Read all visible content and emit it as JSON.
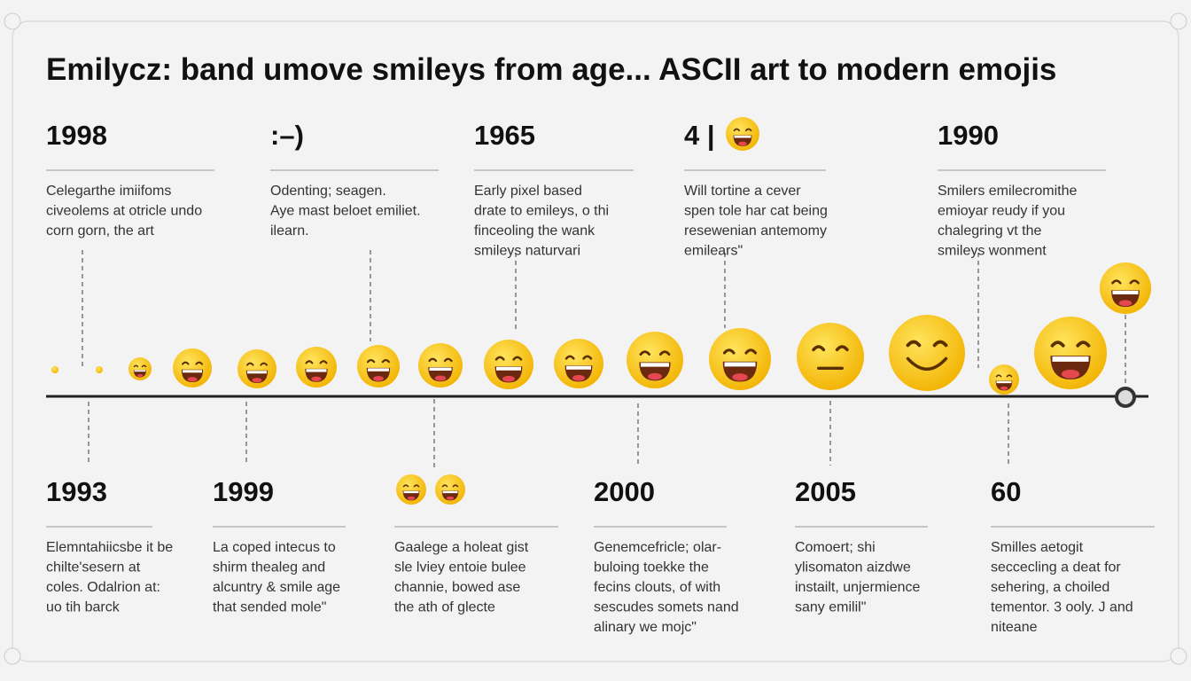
{
  "title": "Emilycz: band umove smileys from age... ASCII art to modern emojis",
  "top_entries": [
    {
      "label": "1998",
      "lines": [
        "Celegarthe imiifoms",
        "civeolems at otricle undo",
        "corn gorn, the art"
      ]
    },
    {
      "label": ":–)",
      "lines": [
        "Odenting; seagen.",
        "Aye mast beloet emiliet.",
        "ilearn."
      ]
    },
    {
      "label": "1965",
      "lines": [
        "Early pixel based",
        "drate to emileys, o thi",
        "finceoling the wank",
        "smileys naturvari"
      ]
    },
    {
      "label": "4 |",
      "lines": [
        "Will tortine a cever",
        "spen tole har cat being",
        "resewenian antemomy",
        "emilears\""
      ]
    },
    {
      "label": "1990",
      "lines": [
        "Smilers emilecromithe",
        "emioyar reudy if you",
        "chalegring vt the",
        "smileys wonment"
      ]
    }
  ],
  "bottom_entries": [
    {
      "label": "1993",
      "lines": [
        "Elemntahiicsbe it be",
        "chilte'sesern at",
        "coles. Odalrion at:",
        "uo tih barck"
      ]
    },
    {
      "label": "1999",
      "lines": [
        "La coped intecus to",
        "shirm thealeg and",
        "alcuntry & smile age",
        "that sended mole\""
      ]
    },
    {
      "lines": [
        "Gaalege a holeat gist",
        "sle lviey entoie bulee",
        "channie, bowed ase",
        "the ath of glecte"
      ]
    },
    {
      "label": "2000",
      "lines": [
        "Genemcefricle; olar-",
        "buloing toekke the",
        "fecins clouts, of with",
        "sescudes somets nand",
        "alinary we mojc\""
      ]
    },
    {
      "label": "2005",
      "lines": [
        "Comoert; shi",
        "ylisomaton aizdwe",
        "instailt, unjermience",
        "sany emilil\""
      ]
    },
    {
      "label": "60",
      "lines": [
        "Smilles aetogit",
        "seccecling a deat for",
        "sehering, a choiled",
        "tementor. 3 ooly. J and",
        "niteane"
      ]
    }
  ]
}
